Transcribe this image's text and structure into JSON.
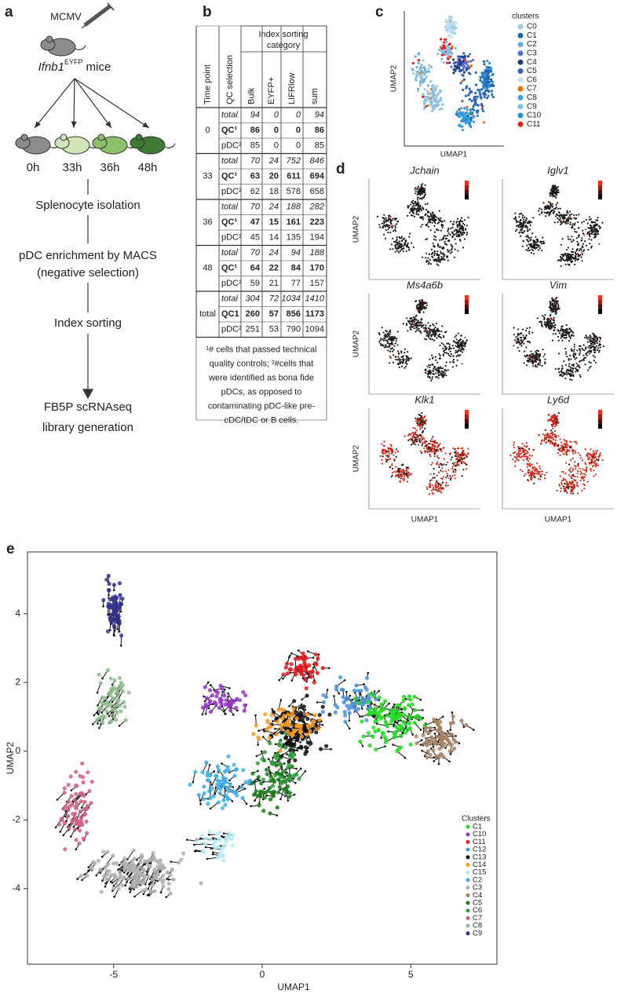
{
  "panel_a": {
    "label": "a",
    "virus": "MCMV",
    "mice": {
      "gene": "Ifnb1",
      "sup": "EYFP",
      "suffix": " mice"
    },
    "timepoints": [
      "0h",
      "33h",
      "36h",
      "48h"
    ],
    "steps": [
      "Splenocyte isolation",
      "pDC enrichment by MACS",
      "(negative selection)",
      "Index sorting",
      "FB5P scRNAseq",
      "library generation"
    ]
  },
  "panel_b": {
    "label": "b",
    "header": {
      "time_point": "Time point",
      "qc_selection": "QC selection",
      "category": [
        "Index sorting",
        "category"
      ],
      "columns": [
        "Bulk",
        "EYFP+",
        "LIFRlow",
        "sum"
      ]
    },
    "groups": [
      {
        "time": "0",
        "rows": [
          {
            "label": "total",
            "values": [
              94,
              0,
              0,
              94
            ]
          },
          {
            "label": "QC¹",
            "values": [
              86,
              0,
              0,
              86
            ]
          },
          {
            "label": "pDC²",
            "values": [
              85,
              0,
              0,
              85
            ]
          }
        ]
      },
      {
        "time": "33",
        "rows": [
          {
            "label": "total",
            "values": [
              70,
              24,
              752,
              846
            ]
          },
          {
            "label": "QC¹",
            "values": [
              63,
              20,
              611,
              694
            ]
          },
          {
            "label": "pDC²",
            "values": [
              62,
              18,
              578,
              658
            ]
          }
        ]
      },
      {
        "time": "36",
        "rows": [
          {
            "label": "total",
            "values": [
              70,
              24,
              188,
              282
            ]
          },
          {
            "label": "QC¹",
            "values": [
              47,
              15,
              161,
              223
            ]
          },
          {
            "label": "pDC²",
            "values": [
              45,
              14,
              135,
              194
            ]
          }
        ]
      },
      {
        "time": "48",
        "rows": [
          {
            "label": "total",
            "values": [
              70,
              24,
              94,
              188
            ]
          },
          {
            "label": "QC¹",
            "values": [
              64,
              22,
              84,
              170
            ]
          },
          {
            "label": "pDC²",
            "values": [
              59,
              21,
              77,
              157
            ]
          }
        ]
      },
      {
        "time": "total",
        "rows": [
          {
            "label": "total",
            "values": [
              304,
              72,
              1034,
              1410
            ]
          },
          {
            "label": "QC1",
            "values": [
              260,
              57,
              856,
              1173
            ]
          },
          {
            "label": "pDC²",
            "values": [
              251,
              53,
              790,
              1094
            ]
          }
        ]
      }
    ],
    "footnote": [
      "¹# cells that passed technical",
      "quality controls; ²#cells that",
      "were identified as bona fide",
      "pDCs, as opposed to",
      "contaminating pDC-like pre-",
      "cDC/tDC or B cells."
    ]
  },
  "panel_c": {
    "label": "c",
    "x_label": "UMAP1",
    "y_label": "UMAP2",
    "legend_title": "clusters",
    "series": [
      {
        "name": "C0",
        "color": "#9ecae1"
      },
      {
        "name": "C1",
        "color": "#2166ac"
      },
      {
        "name": "C2",
        "color": "#6baed6"
      },
      {
        "name": "C3",
        "color": "#5b6fd6"
      },
      {
        "name": "C4",
        "color": "#1f3d7a"
      },
      {
        "name": "C5",
        "color": "#3a62b8"
      },
      {
        "name": "C6",
        "color": "#c6e4f2"
      },
      {
        "name": "C7",
        "color": "#e6730b"
      },
      {
        "name": "C8",
        "color": "#3ba3dd"
      },
      {
        "name": "C9",
        "color": "#7fbfe8"
      },
      {
        "name": "C10",
        "color": "#2b8cd9"
      },
      {
        "name": "C11",
        "color": "#e3211c"
      }
    ]
  },
  "panel_d": {
    "label": "d",
    "x_label": "UMAP1",
    "y_label": "UMAP2",
    "genes": [
      "Jchain",
      "Iglv1",
      "Ms4a6b",
      "Vim",
      "Klk1",
      "Ly6d"
    ]
  },
  "panel_e": {
    "label": "e",
    "x_label": "UMAP1",
    "y_label": "UMAP2",
    "xlim": [
      -7.9,
      7.9
    ],
    "ylim": [
      -6.2,
      5.8
    ],
    "xticks": [
      -5,
      0,
      5
    ],
    "yticks": [
      -4,
      -2,
      0,
      2,
      4
    ],
    "legend_title": "Clusters",
    "series": [
      {
        "name": "C1",
        "color": "#22dd22"
      },
      {
        "name": "C10",
        "color": "#9933cc"
      },
      {
        "name": "C11",
        "color": "#e31a1c"
      },
      {
        "name": "C12",
        "color": "#4a8fd9"
      },
      {
        "name": "C13",
        "color": "#111111"
      },
      {
        "name": "C14",
        "color": "#ff9a1a"
      },
      {
        "name": "C15",
        "color": "#b3ecf5"
      },
      {
        "name": "C2",
        "color": "#3fb0e6"
      },
      {
        "name": "C3",
        "color": "#b0b0b0"
      },
      {
        "name": "C4",
        "color": "#a88466"
      },
      {
        "name": "C5",
        "color": "#1a7a1a"
      },
      {
        "name": "C6",
        "color": "#2e9e3a"
      },
      {
        "name": "C7",
        "color": "#d0607f"
      },
      {
        "name": "C8",
        "color": "#8fbc8f"
      },
      {
        "name": "C9",
        "color": "#33338f"
      }
    ]
  }
}
